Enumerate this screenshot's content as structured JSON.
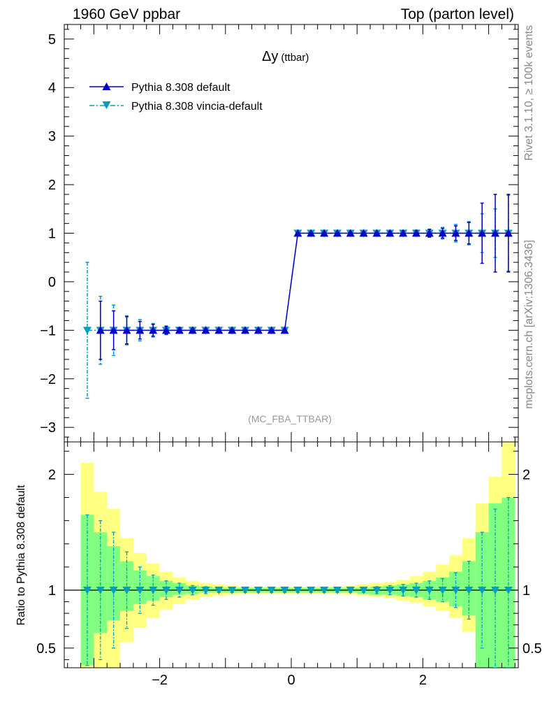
{
  "header": {
    "left": "1960 GeV ppbar",
    "right": "Top (parton level)"
  },
  "side_labels": {
    "rivet": "Rivet 3.1.10, ≥ 100k events",
    "mcplots": "mcplots.cern.ch [arXiv:1306.3436]"
  },
  "chart_data": [
    {
      "type": "line",
      "title": "Δy",
      "title_suffix": "(ttbar)",
      "analysis_tag": "(MC_FBA_TTBAR)",
      "xlim": [
        -3.45,
        3.45
      ],
      "ylim": [
        -3.3,
        5.3
      ],
      "yticks": [
        -3,
        -2,
        -1,
        0,
        1,
        2,
        3,
        4,
        5
      ],
      "ytick_labels": [
        "−3",
        "−2",
        "−1",
        "0",
        "1",
        "2",
        "3",
        "4",
        "5"
      ],
      "x": [
        -3.1,
        -2.9,
        -2.7,
        -2.5,
        -2.3,
        -2.1,
        -1.9,
        -1.7,
        -1.5,
        -1.3,
        -1.1,
        -0.9,
        -0.7,
        -0.5,
        -0.3,
        -0.1,
        0.1,
        0.3,
        0.5,
        0.7,
        0.9,
        1.1,
        1.3,
        1.5,
        1.7,
        1.9,
        2.1,
        2.3,
        2.5,
        2.7,
        2.9,
        3.1,
        3.3
      ],
      "legend_location": "top-left",
      "series": [
        {
          "name": "Pythia 8.308 default",
          "color": "#0000cc",
          "marker": "triangle-up",
          "line": "solid",
          "y": [
            -1,
            -1,
            -1,
            -1,
            -1,
            -1,
            -1,
            -1,
            -1,
            -1,
            -1,
            -1,
            -1,
            -1,
            -1,
            -1,
            1,
            1,
            1,
            1,
            1,
            1,
            1,
            1,
            1,
            1,
            1,
            1,
            1,
            1,
            1,
            1,
            1
          ],
          "err": [
            0,
            0.6,
            0.4,
            0.28,
            0.18,
            0.12,
            0.08,
            0.05,
            0.04,
            0.03,
            0.02,
            0.02,
            0.02,
            0.02,
            0.02,
            0.02,
            0.02,
            0.02,
            0.02,
            0.02,
            0.02,
            0.03,
            0.03,
            0.04,
            0.05,
            0.06,
            0.08,
            0.1,
            0.15,
            0.22,
            0.62,
            0.8,
            0.8
          ]
        },
        {
          "name": "Pythia 8.308 vincia-default",
          "color": "#00a0c0",
          "marker": "triangle-down",
          "line": "dash-dot",
          "y": [
            -1,
            -1,
            -1,
            -1,
            -1,
            -1,
            -1,
            -1,
            -1,
            -1,
            -1,
            -1,
            -1,
            -1,
            -1,
            -1,
            1,
            1,
            1,
            1,
            1,
            1,
            1,
            1,
            1,
            1,
            1,
            1,
            1,
            1,
            1,
            1,
            1
          ],
          "err": [
            1.4,
            0.7,
            0.52,
            0.3,
            0.22,
            0.14,
            0.09,
            0.06,
            0.04,
            0.03,
            0.02,
            0.02,
            0.02,
            0.02,
            0.02,
            0.02,
            0.02,
            0.02,
            0.02,
            0.02,
            0.02,
            0.03,
            0.03,
            0.04,
            0.05,
            0.06,
            0.08,
            0.12,
            0.18,
            0.24,
            0.4,
            0.5,
            0.78
          ]
        }
      ]
    },
    {
      "type": "line",
      "ylabel": "Ratio to Pythia 8.308 default",
      "xlim": [
        -3.45,
        3.45
      ],
      "ylim": [
        0.33,
        2.28
      ],
      "yticks": [
        0.5,
        1,
        2
      ],
      "ytick_labels": [
        "0.5",
        "1",
        "2"
      ],
      "xticks": [
        -2,
        0,
        2
      ],
      "xtick_labels": [
        "−2",
        "0",
        "2"
      ],
      "x_edges": [
        -3.2,
        -3.0,
        -2.8,
        -2.6,
        -2.4,
        -2.2,
        -2.0,
        -1.8,
        -1.6,
        -1.4,
        -1.2,
        -1.0,
        -0.8,
        -0.6,
        -0.4,
        -0.2,
        0.0,
        0.2,
        0.4,
        0.6,
        0.8,
        1.0,
        1.2,
        1.4,
        1.6,
        1.8,
        2.0,
        2.2,
        2.4,
        2.6,
        2.8,
        3.0,
        3.2,
        3.4
      ],
      "band_yellow_hi": [
        2.1,
        1.85,
        1.7,
        1.45,
        1.32,
        1.23,
        1.16,
        1.11,
        1.08,
        1.06,
        1.05,
        1.04,
        1.03,
        1.03,
        1.03,
        1.03,
        1.03,
        1.03,
        1.03,
        1.03,
        1.04,
        1.05,
        1.06,
        1.07,
        1.09,
        1.12,
        1.16,
        1.22,
        1.3,
        1.45,
        1.75,
        1.98,
        2.28
      ],
      "band_yellow_lo": [
        0.33,
        0.33,
        0.33,
        0.55,
        0.68,
        0.76,
        0.83,
        0.88,
        0.92,
        0.94,
        0.95,
        0.96,
        0.97,
        0.97,
        0.97,
        0.97,
        0.97,
        0.97,
        0.97,
        0.97,
        0.96,
        0.95,
        0.94,
        0.93,
        0.91,
        0.89,
        0.86,
        0.82,
        0.76,
        0.64,
        0.48,
        0.33,
        0.33
      ],
      "band_green_hi": [
        1.65,
        1.5,
        1.38,
        1.25,
        1.17,
        1.12,
        1.08,
        1.06,
        1.04,
        1.03,
        1.02,
        1.02,
        1.02,
        1.02,
        1.02,
        1.02,
        1.02,
        1.02,
        1.02,
        1.02,
        1.02,
        1.02,
        1.03,
        1.04,
        1.05,
        1.06,
        1.08,
        1.11,
        1.16,
        1.25,
        1.5,
        1.75,
        1.8
      ],
      "band_green_lo": [
        0.35,
        0.63,
        0.74,
        0.82,
        0.88,
        0.91,
        0.94,
        0.96,
        0.97,
        0.98,
        0.98,
        0.98,
        0.98,
        0.98,
        0.98,
        0.98,
        0.98,
        0.98,
        0.98,
        0.98,
        0.98,
        0.97,
        0.96,
        0.96,
        0.95,
        0.94,
        0.92,
        0.9,
        0.86,
        0.78,
        0.33,
        0.33,
        0.33
      ],
      "ratio_x": [
        -3.1,
        -2.9,
        -2.7,
        -2.5,
        -2.3,
        -2.1,
        -1.9,
        -1.7,
        -1.5,
        -1.3,
        -1.1,
        -0.9,
        -0.7,
        -0.5,
        -0.3,
        -0.1,
        0.1,
        0.3,
        0.5,
        0.7,
        0.9,
        1.1,
        1.3,
        1.5,
        1.7,
        1.9,
        2.1,
        2.3,
        2.5,
        2.7,
        2.9,
        3.1,
        3.3
      ],
      "ratio_y": [
        1,
        1,
        1,
        1,
        1,
        1,
        1,
        1,
        1,
        1,
        1,
        1,
        1,
        1,
        1,
        1,
        1,
        1,
        1,
        1,
        1,
        1,
        1,
        1,
        1,
        1,
        1,
        1,
        1,
        1,
        1,
        1,
        1
      ],
      "ratio_err": [
        0.65,
        0.6,
        0.5,
        0.33,
        0.2,
        0.13,
        0.08,
        0.06,
        0.04,
        0.03,
        0.02,
        0.02,
        0.02,
        0.02,
        0.02,
        0.02,
        0.02,
        0.02,
        0.02,
        0.02,
        0.02,
        0.02,
        0.03,
        0.04,
        0.05,
        0.06,
        0.08,
        0.1,
        0.15,
        0.25,
        0.5,
        0.7,
        0.8
      ],
      "colors": {
        "band_yellow": "#ffff80",
        "band_green": "#80ff80",
        "ratio_series": "#00a0c0"
      }
    }
  ]
}
